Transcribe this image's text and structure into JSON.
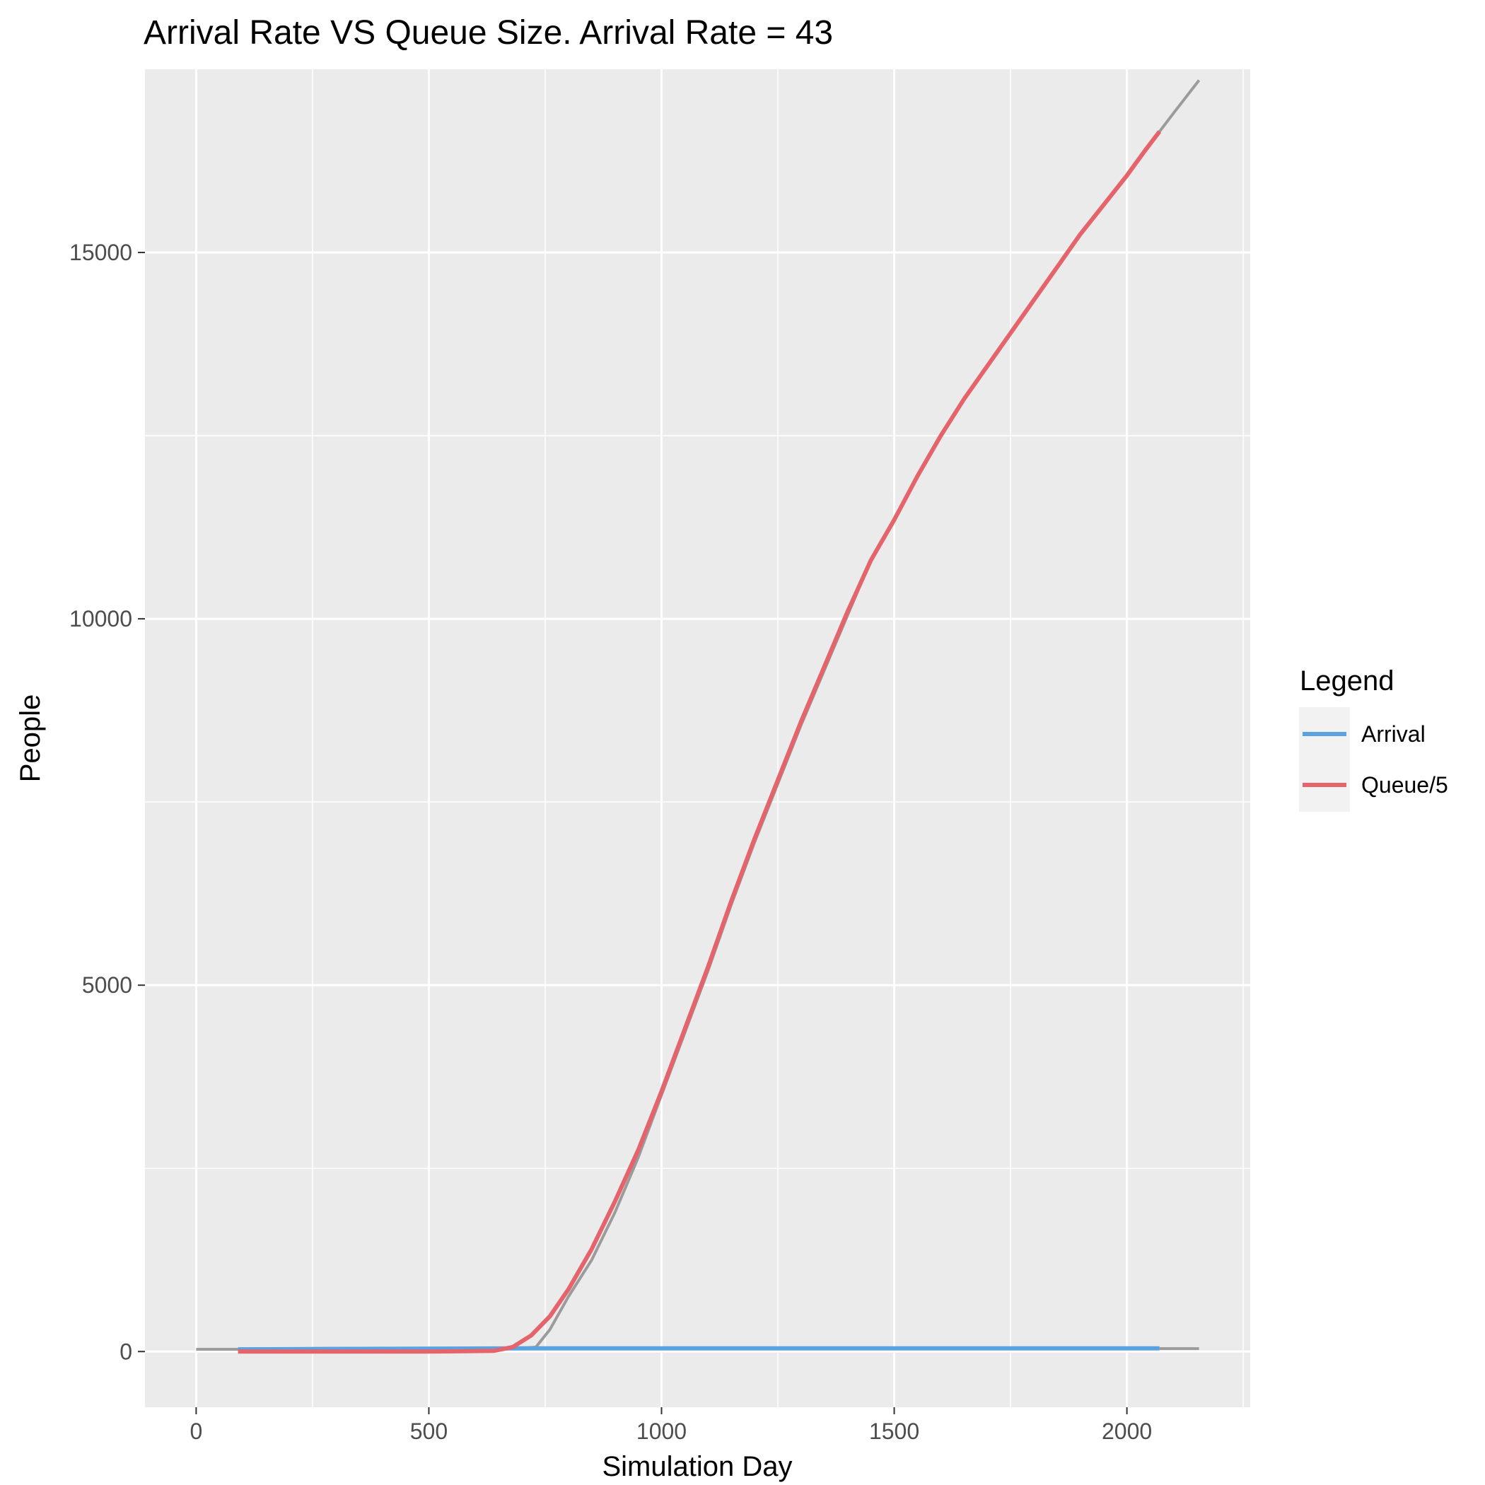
{
  "chart_data": {
    "type": "line",
    "title": "Arrival Rate VS Queue Size. Arrival Rate = 43",
    "xlabel": "Simulation Day",
    "ylabel": "People",
    "xlim": [
      -110,
      2265
    ],
    "ylim": [
      -760,
      17500
    ],
    "x_ticks": [
      0,
      500,
      1000,
      1500,
      2000
    ],
    "y_ticks": [
      0,
      5000,
      10000,
      15000
    ],
    "grid": true,
    "panel_background": "#ebebeb",
    "grid_color": "#ffffff",
    "legend": {
      "title": "Legend",
      "placement": "right",
      "entries": [
        {
          "label": "Arrival",
          "color": "#5ba3e0"
        },
        {
          "label": "Queue/5",
          "color": "#e5636a"
        }
      ]
    },
    "series": [
      {
        "name": "Arrival",
        "color": "#5ba3e0",
        "points": [
          [
            90,
            30
          ],
          [
            700,
            43
          ],
          [
            2070,
            43
          ]
        ]
      },
      {
        "name": "Queue/5",
        "color": "#e5636a",
        "points": [
          [
            90,
            0
          ],
          [
            500,
            0
          ],
          [
            640,
            10
          ],
          [
            680,
            60
          ],
          [
            720,
            220
          ],
          [
            760,
            480
          ],
          [
            800,
            850
          ],
          [
            850,
            1400
          ],
          [
            900,
            2050
          ],
          [
            950,
            2750
          ],
          [
            1000,
            3550
          ],
          [
            1050,
            4400
          ],
          [
            1100,
            5250
          ],
          [
            1150,
            6150
          ],
          [
            1200,
            7000
          ],
          [
            1250,
            7800
          ],
          [
            1300,
            8600
          ],
          [
            1350,
            9350
          ],
          [
            1400,
            10100
          ],
          [
            1450,
            10800
          ],
          [
            1500,
            11350
          ],
          [
            1550,
            11950
          ],
          [
            1600,
            12500
          ],
          [
            1650,
            13000
          ],
          [
            1700,
            13450
          ],
          [
            1750,
            13900
          ],
          [
            1800,
            14350
          ],
          [
            1850,
            14800
          ],
          [
            1900,
            15250
          ],
          [
            1950,
            15650
          ],
          [
            2000,
            16050
          ],
          [
            2040,
            16400
          ],
          [
            2070,
            16650
          ]
        ]
      },
      {
        "color": "#9b9b9b",
        "points": [
          [
            0,
            30
          ],
          [
            100,
            30
          ],
          [
            200,
            40
          ],
          [
            300,
            45
          ],
          [
            400,
            45
          ],
          [
            500,
            45
          ],
          [
            600,
            45
          ],
          [
            700,
            45
          ],
          [
            730,
            60
          ],
          [
            760,
            300
          ],
          [
            800,
            750
          ],
          [
            850,
            1250
          ],
          [
            900,
            1900
          ],
          [
            950,
            2650
          ],
          [
            1000,
            3500
          ],
          [
            1050,
            4350
          ],
          [
            1100,
            5200
          ],
          [
            1150,
            6100
          ],
          [
            1200,
            6950
          ],
          [
            1250,
            7750
          ],
          [
            1300,
            8550
          ],
          [
            1350,
            9300
          ],
          [
            1400,
            10050
          ],
          [
            1450,
            10800
          ],
          [
            1500,
            11350
          ],
          [
            1550,
            11950
          ],
          [
            1600,
            12500
          ],
          [
            1650,
            13000
          ],
          [
            1700,
            13450
          ],
          [
            1750,
            13900
          ],
          [
            1800,
            14350
          ],
          [
            1850,
            14800
          ],
          [
            1900,
            15250
          ],
          [
            1950,
            15650
          ],
          [
            2000,
            16050
          ],
          [
            2070,
            16650
          ],
          [
            2100,
            16900
          ],
          [
            2155,
            17350
          ]
        ]
      },
      {
        "color": "#9b9b9b",
        "points": [
          [
            2070,
            40
          ],
          [
            2155,
            40
          ]
        ]
      }
    ]
  }
}
